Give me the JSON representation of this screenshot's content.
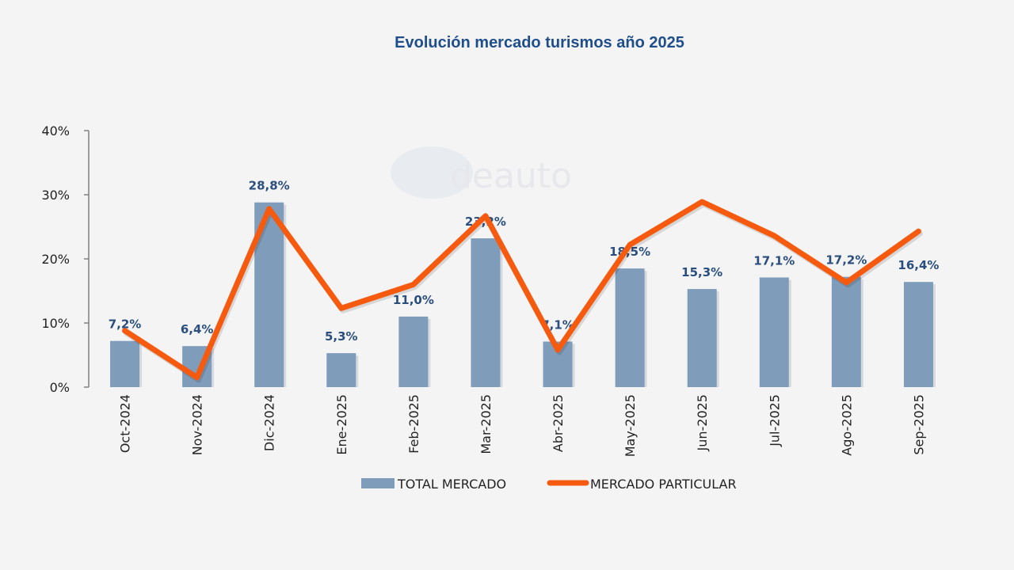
{
  "chart_data": {
    "type": "bar",
    "title": "Evolución mercado turismos año 2025",
    "xlabel": "",
    "ylabel": "",
    "ylim": [
      0,
      40
    ],
    "yticks": [
      "0%",
      "10%",
      "20%",
      "30%",
      "40%"
    ],
    "ytick_values": [
      0,
      10,
      20,
      30,
      40
    ],
    "grid": false,
    "legend_position": "bottom",
    "categories": [
      "Oct-2024",
      "Nov-2024",
      "Dic-2024",
      "Ene-2025",
      "Feb-2025",
      "Mar-2025",
      "Abr-2025",
      "May-2025",
      "Jun-2025",
      "Jul-2025",
      "Ago-2025",
      "Sep-2025"
    ],
    "series": [
      {
        "name": "TOTAL MERCADO",
        "type": "bar",
        "color": "#7f9cba",
        "values": [
          7.2,
          6.4,
          28.8,
          5.3,
          11.0,
          23.2,
          7.1,
          18.5,
          15.3,
          17.1,
          17.2,
          16.4
        ],
        "labels": [
          "7,2%",
          "6,4%",
          "28,8%",
          "5,3%",
          "11,0%",
          "23,2%",
          "7,1%",
          "18,5%",
          "15,3%",
          "17,1%",
          "17,2%",
          "16,4%"
        ]
      },
      {
        "name": "MERCADO PARTICULAR",
        "type": "line",
        "color": "#f55a0f",
        "values": [
          8.8,
          1.5,
          27.8,
          12.3,
          16.0,
          26.7,
          5.8,
          22.2,
          28.9,
          23.6,
          16.3,
          24.3
        ]
      }
    ],
    "watermark": "deauto"
  }
}
